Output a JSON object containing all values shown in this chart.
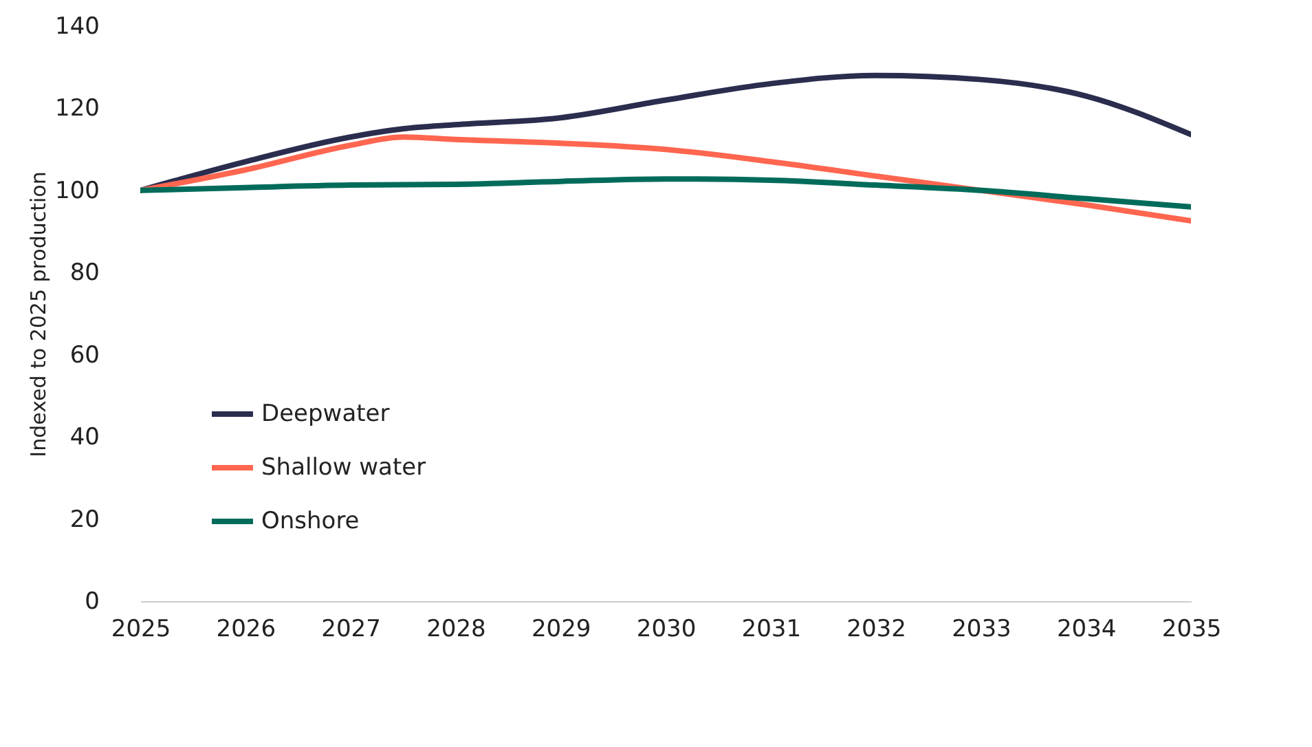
{
  "chart_data": {
    "type": "line",
    "ylabel": "Indexed to 2025 production",
    "x": [
      2025,
      2026,
      2027,
      2027.5,
      2028,
      2029,
      2030,
      2031,
      2032,
      2033,
      2034,
      2035
    ],
    "series": [
      {
        "name": "Deepwater",
        "color": "#2b2d4e",
        "values": [
          100,
          107,
          113,
          115,
          116,
          117.7,
          122,
          126,
          128,
          127,
          123,
          113.6
        ]
      },
      {
        "name": "Shallow water",
        "color": "#ff6650",
        "values": [
          100,
          105,
          111,
          113,
          112.4,
          111.5,
          110,
          107,
          103.5,
          100,
          96.5,
          92.6
        ]
      },
      {
        "name": "Onshore",
        "color": "#006b5a",
        "values": [
          100,
          100.7,
          101.3,
          101.4,
          101.5,
          102.2,
          102.8,
          102.5,
          101.3,
          100,
          98,
          96
        ]
      }
    ],
    "xlim": [
      2025,
      2035
    ],
    "xticks": [
      2025,
      2026,
      2027,
      2028,
      2029,
      2030,
      2031,
      2032,
      2033,
      2034,
      2035
    ],
    "ylim": [
      0,
      140
    ],
    "yticks": [
      0,
      20,
      40,
      60,
      80,
      100,
      120,
      140
    ],
    "grid": false,
    "legend": "bottom left",
    "line_style": "solid",
    "marker": "none"
  }
}
